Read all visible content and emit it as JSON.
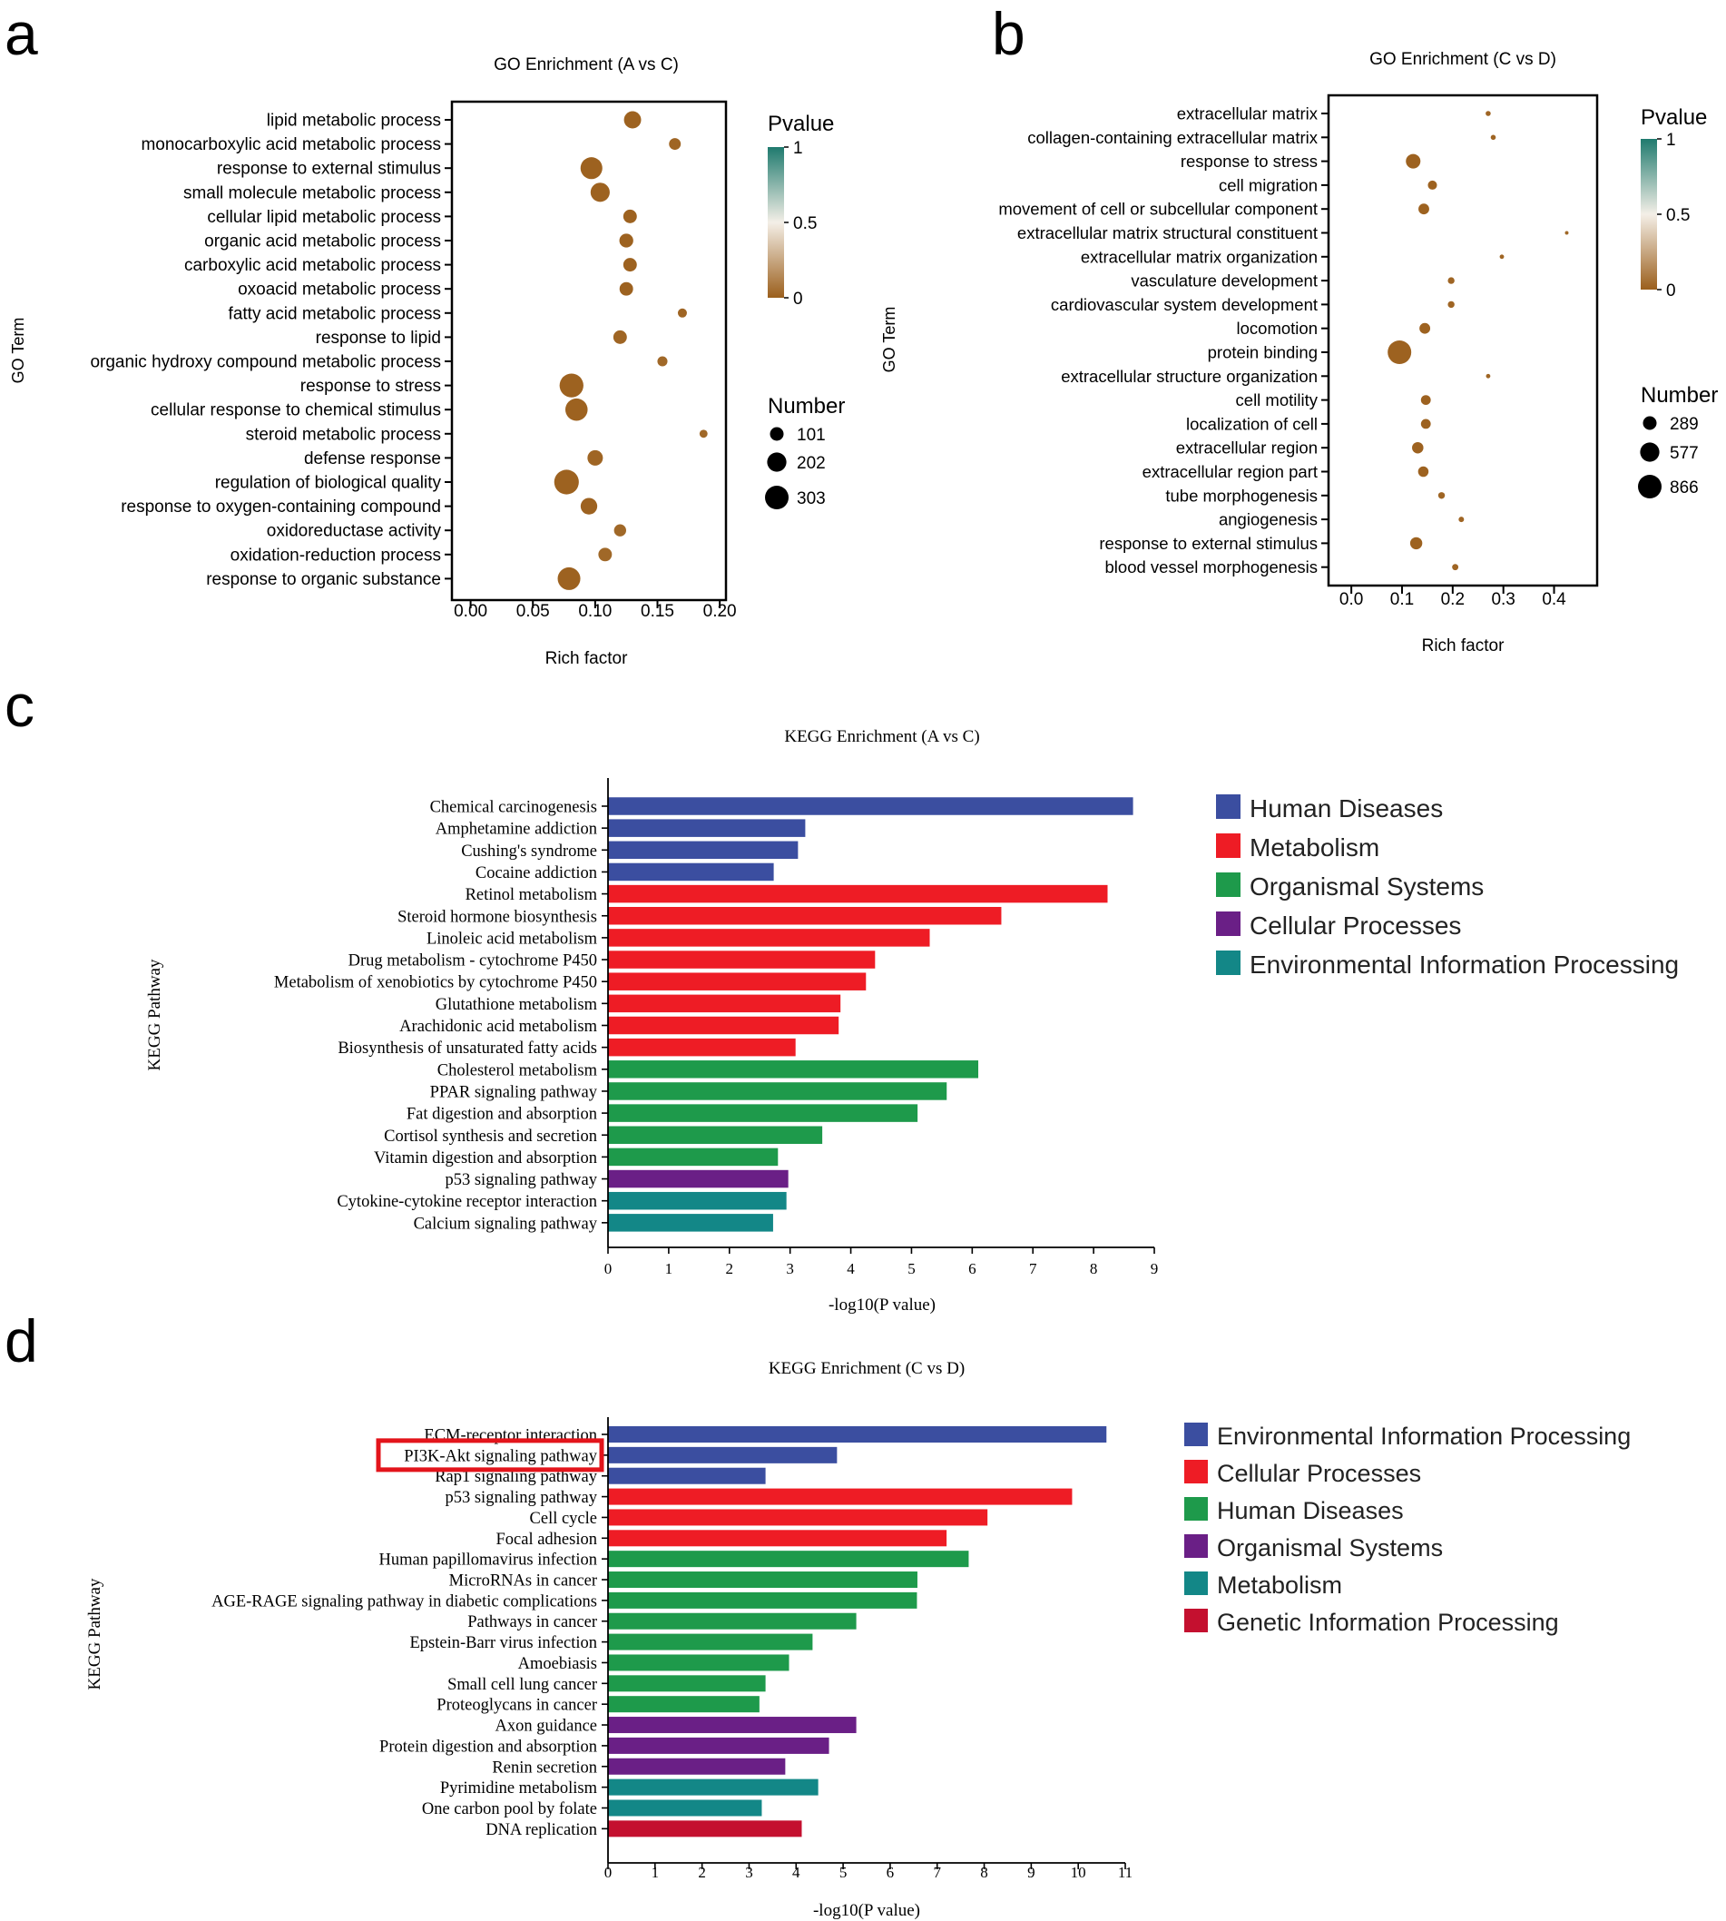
{
  "chart_data": [
    {
      "id": "a",
      "panel_label": "a",
      "type": "scatter",
      "title": "GO Enrichment (A vs C)",
      "xlabel": "Rich factor",
      "ylabel": "GO Term",
      "xlim": [
        -0.015,
        0.205
      ],
      "xticks": [
        "0.00",
        "0.05",
        "0.10",
        "0.15",
        "0.20"
      ],
      "xtick_values": [
        0,
        0.05,
        0.1,
        0.15,
        0.2
      ],
      "terms": [
        "lipid metabolic process",
        "monocarboxylic acid metabolic process",
        "response to external stimulus",
        "small molecule metabolic process",
        "cellular lipid metabolic process",
        "organic acid metabolic process",
        "carboxylic acid metabolic process",
        "oxoacid metabolic process",
        "fatty acid metabolic process",
        "response to lipid",
        "organic hydroxy compound metabolic process",
        "response to stress",
        "cellular response to chemical stimulus",
        "steroid metabolic process",
        "defense response",
        "regulation of biological quality",
        "response to oxygen-containing compound",
        "oxidoreductase activity",
        "oxidation-reduction process",
        "response to organic substance"
      ],
      "rich_factor": [
        0.13,
        0.164,
        0.097,
        0.104,
        0.128,
        0.125,
        0.128,
        0.125,
        0.17,
        0.12,
        0.154,
        0.081,
        0.085,
        0.187,
        0.1,
        0.077,
        0.095,
        0.12,
        0.108,
        0.079
      ],
      "number": [
        160,
        75,
        260,
        200,
        100,
        105,
        100,
        100,
        45,
        100,
        55,
        310,
        270,
        35,
        130,
        330,
        150,
        80,
        100,
        280
      ],
      "pvalue": [
        0.01,
        0.02,
        0.01,
        0.01,
        0.01,
        0.01,
        0.01,
        0.01,
        0.02,
        0.02,
        0.03,
        0.01,
        0.01,
        0.03,
        0.02,
        0.01,
        0.01,
        0.03,
        0.03,
        0.01
      ],
      "legend_pvalue": {
        "title": "Pvalue",
        "ticks": [
          "1",
          "0.5",
          "0"
        ]
      },
      "legend_number": {
        "title": "Number",
        "labels": [
          "101",
          "202",
          "303"
        ],
        "values": [
          101,
          202,
          303
        ]
      },
      "colors": {
        "low": "#9b5f1c",
        "mid": "#f4efe7",
        "high": "#1f7a6e"
      }
    },
    {
      "id": "b",
      "panel_label": "b",
      "type": "scatter",
      "title": "GO Enrichment (C vs D)",
      "xlabel": "Rich factor",
      "ylabel": "GO Term",
      "xlim": [
        -0.045,
        0.485
      ],
      "xticks": [
        "0.0",
        "0.1",
        "0.2",
        "0.3",
        "0.4"
      ],
      "xtick_values": [
        0,
        0.1,
        0.2,
        0.3,
        0.4
      ],
      "terms": [
        "extracellular matrix",
        "collagen-containing extracellular matrix",
        "response to stress",
        "cell migration",
        "movement of cell or subcellular component",
        "extracellular matrix structural constituent",
        "extracellular matrix organization",
        "vasculature development",
        "cardiovascular system development",
        "locomotion",
        "protein binding",
        "extracellular structure organization",
        "cell motility",
        "localization of cell",
        "extracellular region",
        "extracellular region part",
        "tube morphogenesis",
        "angiogenesis",
        "response to external stimulus",
        "blood vessel morphogenesis"
      ],
      "rich_factor": [
        0.27,
        0.28,
        0.122,
        0.16,
        0.143,
        0.425,
        0.297,
        0.197,
        0.197,
        0.145,
        0.095,
        0.27,
        0.147,
        0.147,
        0.131,
        0.142,
        0.178,
        0.217,
        0.128,
        0.205
      ],
      "number": [
        40,
        40,
        330,
        130,
        180,
        20,
        30,
        70,
        70,
        180,
        866,
        30,
        150,
        150,
        200,
        170,
        70,
        45,
        230,
        60
      ],
      "pvalue": [
        0.02,
        0.02,
        0.01,
        0.01,
        0.01,
        0.03,
        0.02,
        0.02,
        0.02,
        0.01,
        0.01,
        0.02,
        0.01,
        0.01,
        0.01,
        0.01,
        0.02,
        0.02,
        0.01,
        0.02
      ],
      "legend_pvalue": {
        "title": "Pvalue",
        "ticks": [
          "1",
          "0.5",
          "0"
        ]
      },
      "legend_number": {
        "title": "Number",
        "labels": [
          "289",
          "577",
          "866"
        ],
        "values": [
          289,
          577,
          866
        ]
      },
      "colors": {
        "low": "#9b5f1c",
        "mid": "#f4efe7",
        "high": "#1f7a6e"
      }
    },
    {
      "id": "c",
      "panel_label": "c",
      "type": "bar",
      "orientation": "horizontal",
      "title": "KEGG Enrichment (A vs C)",
      "xlabel": "-log10(P value)",
      "ylabel": "KEGG Pathway",
      "xlim": [
        0,
        9
      ],
      "xticks": [
        "0",
        "1",
        "2",
        "3",
        "4",
        "5",
        "6",
        "7",
        "8",
        "9"
      ],
      "categories": [
        "Chemical carcinogenesis",
        "Amphetamine addiction",
        "Cushing's syndrome",
        "Cocaine addiction",
        "Retinol metabolism",
        "Steroid hormone biosynthesis",
        "Linoleic acid metabolism",
        "Drug metabolism - cytochrome P450",
        "Metabolism of xenobiotics by cytochrome P450",
        "Glutathione metabolism",
        "Arachidonic acid metabolism",
        "Biosynthesis of unsaturated fatty acids",
        "Cholesterol metabolism",
        "PPAR signaling pathway",
        "Fat digestion and absorption",
        "Cortisol synthesis and secretion",
        "Vitamin digestion and absorption",
        "p53 signaling pathway",
        "Cytokine-cytokine receptor interaction",
        "Calcium signaling pathway"
      ],
      "values": [
        8.65,
        3.25,
        3.13,
        2.73,
        8.23,
        6.48,
        5.3,
        4.4,
        4.25,
        3.83,
        3.8,
        3.09,
        6.1,
        5.58,
        5.1,
        3.53,
        2.8,
        2.97,
        2.94,
        2.72
      ],
      "groups": [
        0,
        0,
        0,
        0,
        1,
        1,
        1,
        1,
        1,
        1,
        1,
        1,
        2,
        2,
        2,
        2,
        2,
        3,
        4,
        4
      ],
      "legend": [
        "Human Diseases",
        "Metabolism",
        "Organismal Systems",
        "Cellular Processes",
        "Environmental Information Processing"
      ],
      "colors": [
        "#3b4ea0",
        "#ee1c25",
        "#1e9a4b",
        "#6a1f86",
        "#138787"
      ]
    },
    {
      "id": "d",
      "panel_label": "d",
      "type": "bar",
      "orientation": "horizontal",
      "title": "KEGG Enrichment (C vs D)",
      "xlabel": "-log10(P value)",
      "ylabel": "KEGG Pathway",
      "xlim": [
        0,
        11
      ],
      "xticks": [
        "0",
        "1",
        "2",
        "3",
        "4",
        "5",
        "6",
        "7",
        "8",
        "9",
        "10",
        "11"
      ],
      "categories": [
        "ECM-receptor interaction",
        "PI3K-Akt signaling pathway",
        "Rap1 signaling pathway",
        "p53 signaling pathway",
        "Cell cycle",
        "Focal adhesion",
        "Human papillomavirus infection",
        "MicroRNAs in cancer",
        "AGE-RAGE signaling pathway in diabetic complications",
        "Pathways in cancer",
        "Epstein-Barr virus infection",
        "Amoebiasis",
        "Small cell lung cancer",
        "Proteoglycans in cancer",
        "Axon guidance",
        "Protein digestion and absorption",
        "Renin secretion",
        "Pyrimidine metabolism",
        "One carbon pool by folate",
        "DNA replication"
      ],
      "values": [
        10.6,
        4.87,
        3.35,
        9.87,
        8.07,
        7.2,
        7.67,
        6.58,
        6.57,
        5.28,
        4.35,
        3.85,
        3.35,
        3.22,
        5.28,
        4.7,
        3.77,
        4.47,
        3.27,
        4.12
      ],
      "groups": [
        0,
        0,
        0,
        1,
        1,
        1,
        2,
        2,
        2,
        2,
        2,
        2,
        2,
        2,
        3,
        3,
        3,
        4,
        4,
        5
      ],
      "highlight_index": 1,
      "legend": [
        "Environmental Information Processing",
        "Cellular Processes",
        "Human Diseases",
        "Organismal Systems",
        "Metabolism",
        "Genetic Information Processing"
      ],
      "colors": [
        "#3b4ea0",
        "#ee1c25",
        "#1e9a4b",
        "#6a1f86",
        "#138787",
        "#c4102f"
      ]
    }
  ]
}
